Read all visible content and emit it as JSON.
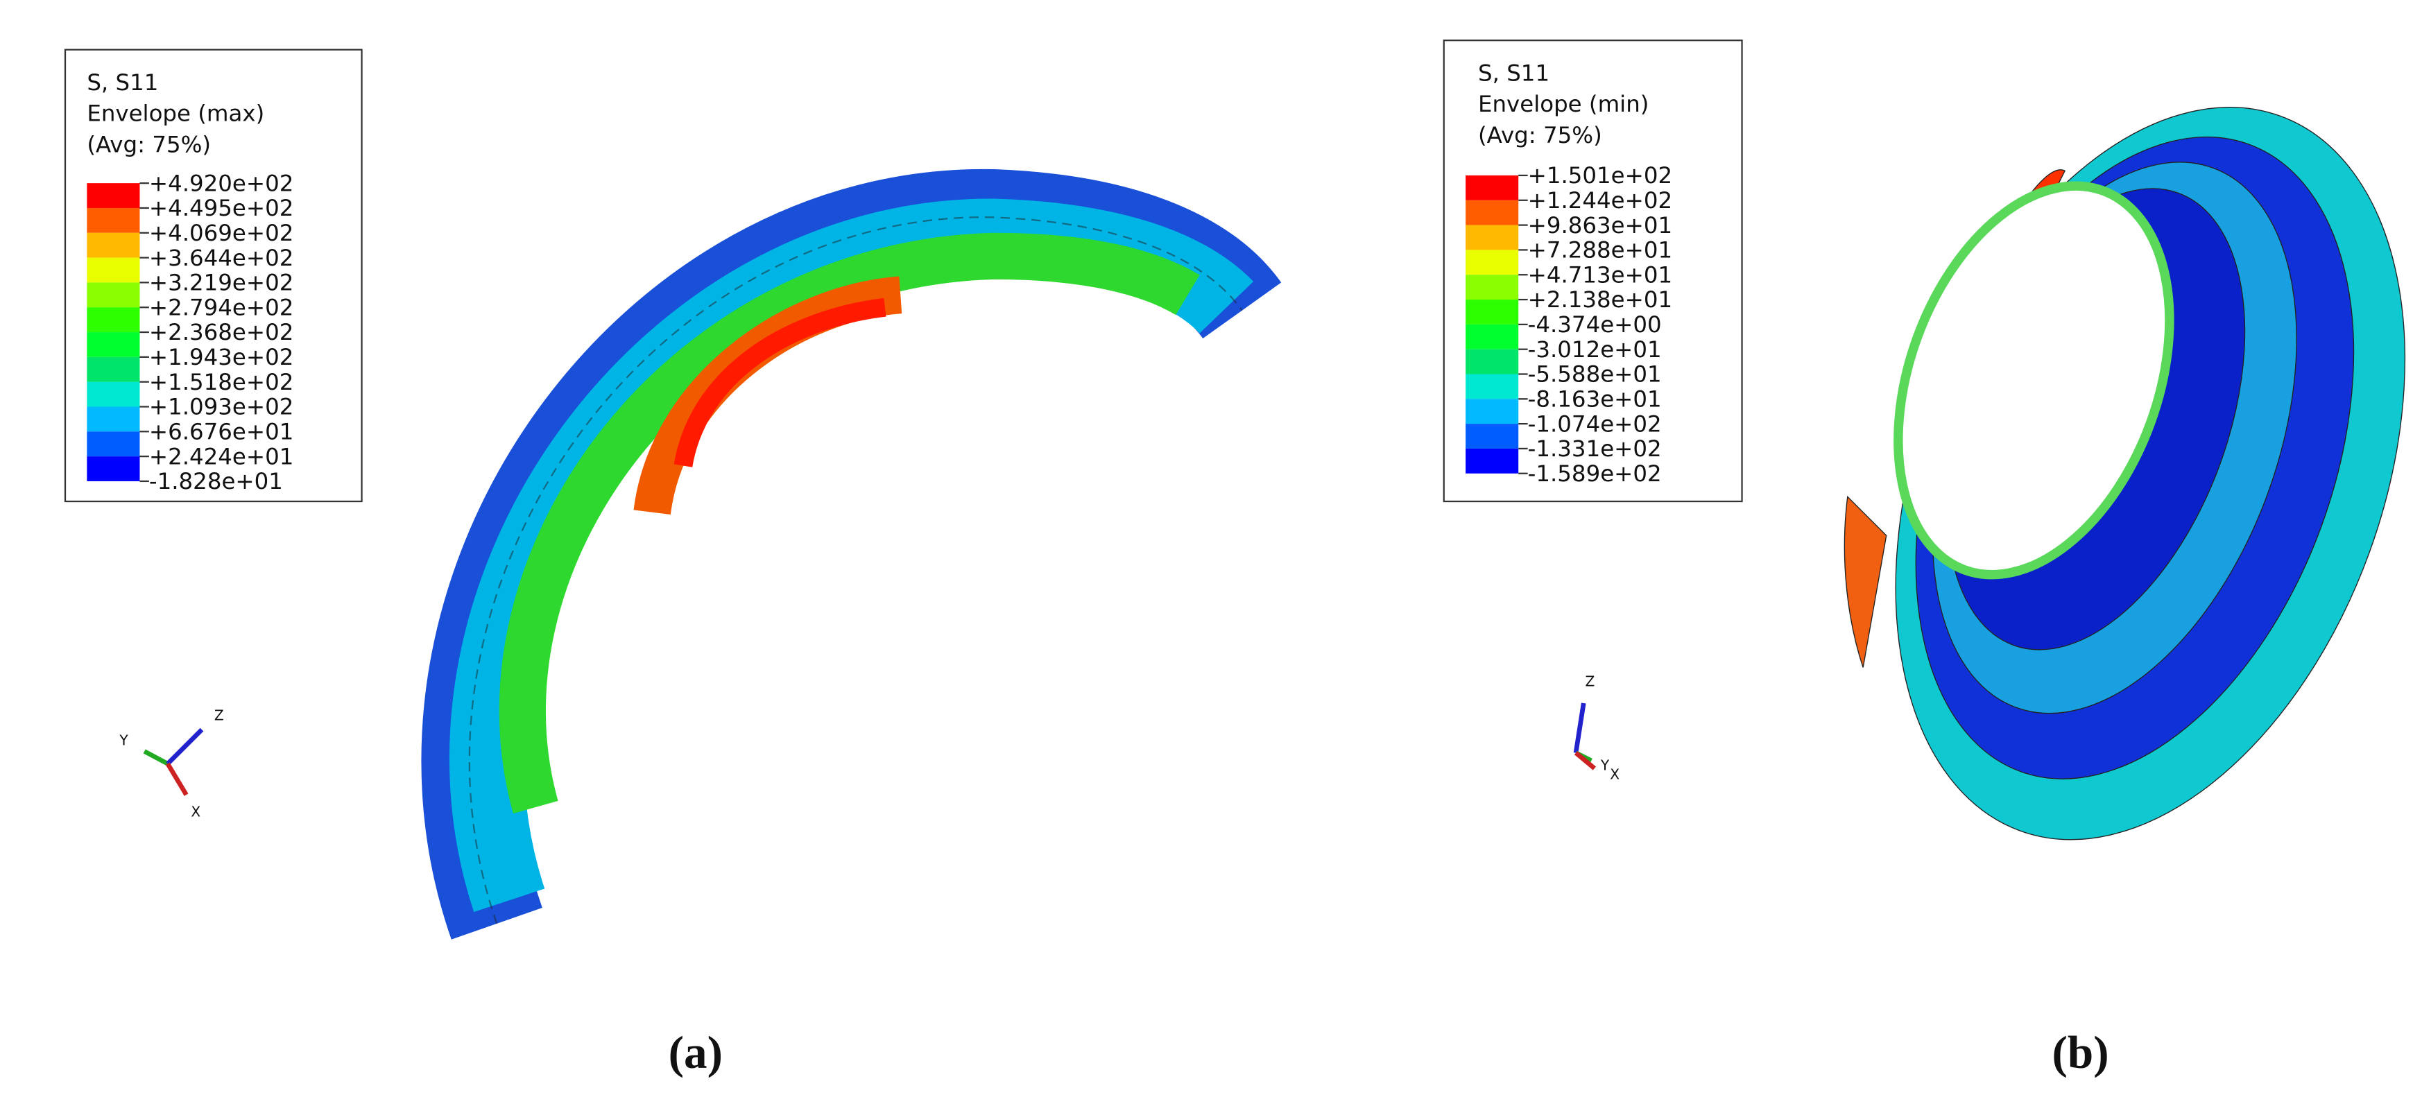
{
  "panels": [
    {
      "legend": {
        "lines": [
          "S, S11",
          "Envelope (max)",
          "(Avg: 75%)"
        ],
        "values": [
          "+4.920e+02",
          "+4.495e+02",
          "+4.069e+02",
          "+3.644e+02",
          "+3.219e+02",
          "+2.794e+02",
          "+2.368e+02",
          "+1.943e+02",
          "+1.518e+02",
          "+1.093e+02",
          "+6.676e+01",
          "+2.424e+01",
          "-1.828e+01"
        ]
      },
      "triad": {
        "first": "Y",
        "second": "Z",
        "third": "X"
      },
      "caption": "(a)"
    },
    {
      "legend": {
        "lines": [
          "S, S11",
          "Envelope (min)",
          "(Avg: 75%)"
        ],
        "values": [
          "+1.501e+02",
          "+1.244e+02",
          "+9.863e+01",
          "+7.288e+01",
          "+4.713e+01",
          "+2.138e+01",
          "-4.374e+00",
          "-3.012e+01",
          "-5.588e+01",
          "-8.163e+01",
          "-1.074e+02",
          "-1.331e+02",
          "-1.589e+02"
        ]
      },
      "triad": {
        "first": "Z",
        "second": "Y",
        "third": "X"
      },
      "caption": "(b)"
    }
  ]
}
